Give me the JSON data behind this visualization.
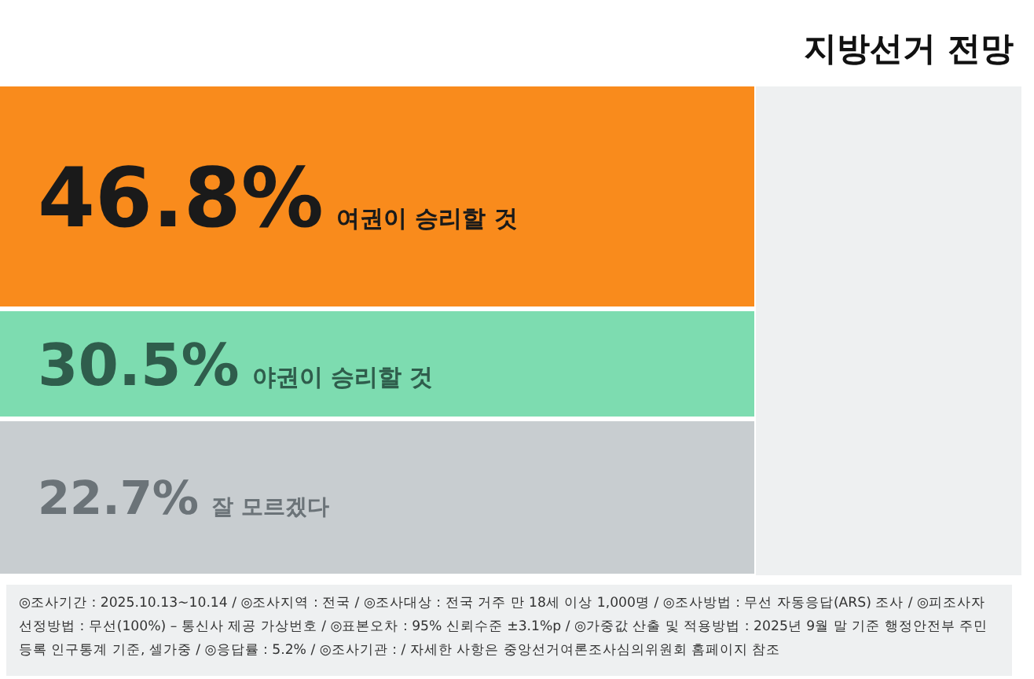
{
  "chart_data": {
    "type": "other",
    "title": "지방선거 전망",
    "categories": [
      "여권이 승리할 것",
      "야권이 승리할 것",
      "잘 모르겠다"
    ],
    "values": [
      46.8,
      30.5,
      22.7
    ],
    "colors": [
      "#f98b1c",
      "#7ddcb0",
      "#c8cdd0"
    ],
    "value_labels": [
      "46.8%",
      "30.5%",
      "22.7%"
    ],
    "annotations": [
      "◎조사기간 : 2025.10.13~10.14 / ◎조사지역 : 전국 / ◎조사대상 : 전국 거주 만 18세 이상 1,000명 / ◎조사방법 : 무선 자동응답(ARS) 조사 / ◎피조사자선정방법 : 무선(100%) – 통신사 제공 가상번호 / ◎표본오차 : 95% 신뢰수준 ±3.1%p / ◎가중값 산출 및 적용방법 : 2025년 9월 말 기준 행정안전부 주민등록 인구통계 기준, 셀가중 / ◎응답률 : 5.2% / ◎조사기관 : / 자세한 사항은 중앙선거여론조사심의위원회 홈페이지 참조"
    ]
  }
}
